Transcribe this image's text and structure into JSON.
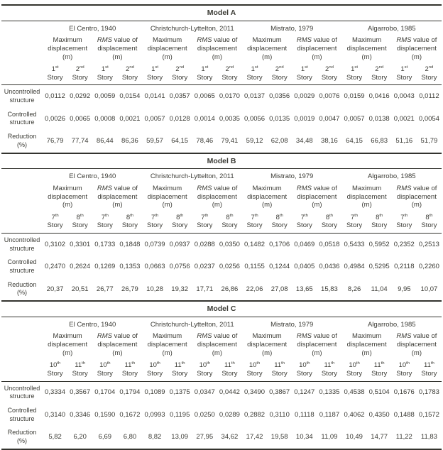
{
  "page": {
    "background": "#ffffff",
    "text_color": "#3b3b35",
    "line_color": "#33332e"
  },
  "table": {
    "story_word": "Story",
    "earthquakes": [
      "El Centro, 1940",
      "Christchurch-Lyttelton, 2011",
      "Mistrato, 1979",
      "Algarrobo, 1985"
    ],
    "measure_headers": [
      {
        "top_italic": "",
        "top_rest": "Maximum",
        "mid": "displacement",
        "unit": "(m)"
      },
      {
        "top_italic": "RMS",
        "top_rest": " value of",
        "mid": "displacement",
        "unit": "(m)"
      }
    ]
  },
  "sections": [
    {
      "title": "Model A",
      "stories": [
        {
          "num": "1",
          "sup": "st"
        },
        {
          "num": "2",
          "sup": "nd"
        }
      ],
      "rows": [
        {
          "label_lines": [
            "Uncontrolled",
            "structure"
          ],
          "values": [
            "0,0112",
            "0,0292",
            "0,0059",
            "0,0154",
            "0,0141",
            "0,0357",
            "0,0065",
            "0,0170",
            "0,0137",
            "0,0356",
            "0,0029",
            "0,0076",
            "0,0159",
            "0,0416",
            "0,0043",
            "0,0112"
          ]
        },
        {
          "label_lines": [
            "Controlled",
            "structure"
          ],
          "values": [
            "0,0026",
            "0,0065",
            "0,0008",
            "0,0021",
            "0,0057",
            "0,0128",
            "0,0014",
            "0,0035",
            "0,0056",
            "0,0135",
            "0,0019",
            "0,0047",
            "0,0057",
            "0,0138",
            "0,0021",
            "0,0054"
          ]
        },
        {
          "label_lines": [
            "Reduction",
            "(%)"
          ],
          "values": [
            "76,79",
            "77,74",
            "86,44",
            "86,36",
            "59,57",
            "64,15",
            "78,46",
            "79,41",
            "59,12",
            "62,08",
            "34,48",
            "38,16",
            "64,15",
            "66,83",
            "51,16",
            "51,79"
          ]
        }
      ]
    },
    {
      "title": "Model B",
      "stories": [
        {
          "num": "7",
          "sup": "th"
        },
        {
          "num": "8",
          "sup": "th"
        }
      ],
      "rows": [
        {
          "label_lines": [
            "Uncontrolled",
            "structure"
          ],
          "values": [
            "0,3102",
            "0,3301",
            "0,1733",
            "0,1848",
            "0,0739",
            "0,0937",
            "0,0288",
            "0,0350",
            "0,1482",
            "0,1706",
            "0,0469",
            "0,0518",
            "0,5433",
            "0,5952",
            "0,2352",
            "0,2513"
          ]
        },
        {
          "label_lines": [
            "Controlled",
            "structure"
          ],
          "values": [
            "0,2470",
            "0,2624",
            "0,1269",
            "0,1353",
            "0,0663",
            "0,0756",
            "0,0237",
            "0,0256",
            "0,1155",
            "0,1244",
            "0,0405",
            "0,0436",
            "0,4984",
            "0,5295",
            "0,2118",
            "0,2260"
          ]
        },
        {
          "label_lines": [
            "Reduction",
            "(%)"
          ],
          "values": [
            "20,37",
            "20,51",
            "26,77",
            "26,79",
            "10,28",
            "19,32",
            "17,71",
            "26,86",
            "22,06",
            "27,08",
            "13,65",
            "15,83",
            "8,26",
            "11,04",
            "9,95",
            "10,07"
          ]
        }
      ]
    },
    {
      "title": "Model C",
      "stories": [
        {
          "num": "10",
          "sup": "th"
        },
        {
          "num": "11",
          "sup": "th"
        }
      ],
      "rows": [
        {
          "label_lines": [
            "Uncontrolled",
            "structure"
          ],
          "values": [
            "0,3334",
            "0,3567",
            "0,1704",
            "0,1794",
            "0,1089",
            "0,1375",
            "0,0347",
            "0,0442",
            "0,3490",
            "0,3867",
            "0,1247",
            "0,1335",
            "0,4538",
            "0,5104",
            "0,1676",
            "0,1783"
          ]
        },
        {
          "label_lines": [
            "Controlled",
            "structure"
          ],
          "values": [
            "0,3140",
            "0,3346",
            "0,1590",
            "0,1672",
            "0,0993",
            "0,1195",
            "0,0250",
            "0,0289",
            "0,2882",
            "0,3110",
            "0,1118",
            "0,1187",
            "0,4062",
            "0,4350",
            "0,1488",
            "0,1572"
          ]
        },
        {
          "label_lines": [
            "Reduction",
            "(%)"
          ],
          "values": [
            "5,82",
            "6,20",
            "6,69",
            "6,80",
            "8,82",
            "13,09",
            "27,95",
            "34,62",
            "17,42",
            "19,58",
            "10,34",
            "11,09",
            "10,49",
            "14,77",
            "11,22",
            "11,83"
          ]
        }
      ]
    }
  ]
}
